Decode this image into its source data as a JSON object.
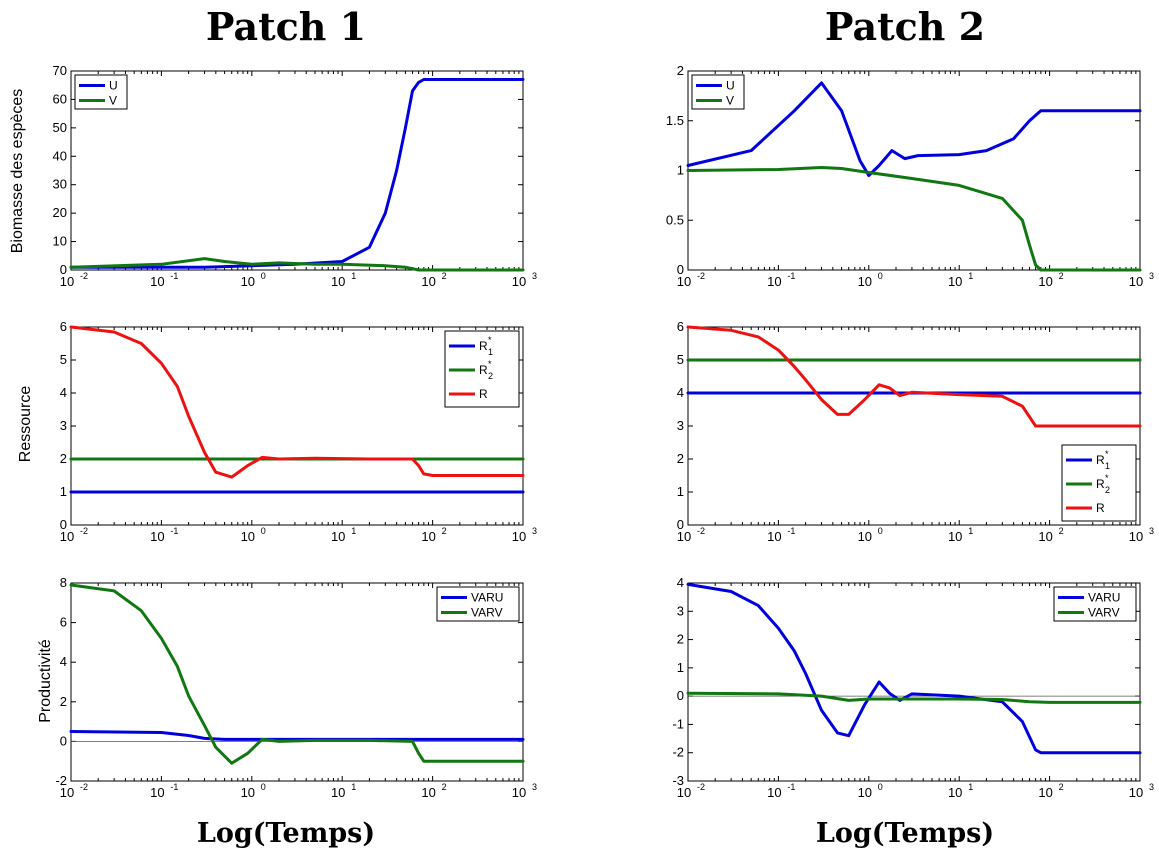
{
  "figure": {
    "titles": [
      "Patch 1",
      "Patch 2"
    ],
    "xlabel": "Log(Temps)",
    "row_ylabels": [
      "Biomasse des espèces",
      "Ressource",
      "Productivité"
    ]
  },
  "colors": {
    "blue": "#0000dd",
    "green": "#117711",
    "red": "#ee1111",
    "zero": "#555555"
  },
  "chart_data": [
    {
      "type": "line",
      "panel": "patch1-biomass",
      "title": "Patch 1",
      "xlabel": "",
      "ylabel": "Biomasse des espèces",
      "xscale": "log",
      "xlim": [
        0.01,
        1000
      ],
      "ylim": [
        0,
        70
      ],
      "xticks": [
        0.01,
        0.1,
        1,
        10,
        100,
        1000
      ],
      "yticks": [
        0,
        10,
        20,
        30,
        40,
        50,
        60,
        70
      ],
      "legend_pos": "top-left",
      "zero_line": false,
      "series": [
        {
          "name": "U",
          "color": "blue",
          "x": [
            0.01,
            0.1,
            0.3,
            1,
            3,
            10,
            20,
            30,
            40,
            50,
            60,
            70,
            80,
            100,
            1000
          ],
          "y": [
            1,
            1,
            1,
            1.5,
            2,
            3,
            8,
            20,
            35,
            50,
            63,
            66,
            67,
            67,
            67
          ]
        },
        {
          "name": "V",
          "color": "green",
          "x": [
            0.01,
            0.1,
            0.3,
            0.5,
            1,
            2,
            5,
            10,
            30,
            50,
            70,
            100,
            1000
          ],
          "y": [
            1,
            2,
            4,
            3,
            2,
            2.5,
            2,
            2,
            1.5,
            1,
            0,
            0,
            0
          ]
        }
      ]
    },
    {
      "type": "line",
      "panel": "patch2-biomass",
      "title": "Patch 2",
      "xlabel": "",
      "ylabel": "",
      "xscale": "log",
      "xlim": [
        0.01,
        1000
      ],
      "ylim": [
        0,
        2
      ],
      "xticks": [
        0.01,
        0.1,
        1,
        10,
        100,
        1000
      ],
      "yticks": [
        0,
        0.5,
        1,
        1.5,
        2
      ],
      "legend_pos": "top-left",
      "zero_line": false,
      "series": [
        {
          "name": "U",
          "color": "blue",
          "x": [
            0.01,
            0.05,
            0.15,
            0.3,
            0.5,
            0.8,
            1,
            1.3,
            1.8,
            2.5,
            3.5,
            10,
            20,
            40,
            60,
            80,
            100,
            1000
          ],
          "y": [
            1.05,
            1.2,
            1.6,
            1.88,
            1.6,
            1.1,
            0.95,
            1.05,
            1.2,
            1.12,
            1.15,
            1.16,
            1.2,
            1.32,
            1.5,
            1.6,
            1.6,
            1.6
          ]
        },
        {
          "name": "V",
          "color": "green",
          "x": [
            0.01,
            0.1,
            0.3,
            0.5,
            1,
            3,
            10,
            30,
            50,
            60,
            70,
            80,
            100,
            1000
          ],
          "y": [
            1,
            1.01,
            1.03,
            1.02,
            0.98,
            0.92,
            0.85,
            0.72,
            0.5,
            0.25,
            0.05,
            0,
            0,
            0
          ]
        }
      ]
    },
    {
      "type": "line",
      "panel": "patch1-resource",
      "xlabel": "",
      "ylabel": "Ressource",
      "xscale": "log",
      "xlim": [
        0.01,
        1000
      ],
      "ylim": [
        0,
        6
      ],
      "xticks": [
        0.01,
        0.1,
        1,
        10,
        100,
        1000
      ],
      "yticks": [
        0,
        1,
        2,
        3,
        4,
        5,
        6
      ],
      "legend_pos": "top-right",
      "zero_line": false,
      "series": [
        {
          "name": "R*1",
          "color": "blue",
          "x": [
            0.01,
            1000
          ],
          "y": [
            1,
            1
          ]
        },
        {
          "name": "R*2",
          "color": "green",
          "x": [
            0.01,
            1000
          ],
          "y": [
            2,
            2
          ]
        },
        {
          "name": "R",
          "color": "red",
          "x": [
            0.01,
            0.03,
            0.06,
            0.1,
            0.15,
            0.2,
            0.3,
            0.4,
            0.6,
            0.9,
            1.3,
            2,
            5,
            20,
            60,
            70,
            80,
            100,
            1000
          ],
          "y": [
            6,
            5.85,
            5.5,
            4.9,
            4.2,
            3.3,
            2.2,
            1.6,
            1.45,
            1.8,
            2.05,
            2,
            2.02,
            2,
            2,
            1.8,
            1.55,
            1.5,
            1.5
          ]
        }
      ]
    },
    {
      "type": "line",
      "panel": "patch2-resource",
      "xlabel": "",
      "ylabel": "",
      "xscale": "log",
      "xlim": [
        0.01,
        1000
      ],
      "ylim": [
        0,
        6
      ],
      "xticks": [
        0.01,
        0.1,
        1,
        10,
        100,
        1000
      ],
      "yticks": [
        0,
        1,
        2,
        3,
        4,
        5,
        6
      ],
      "legend_pos": "bottom-right",
      "zero_line": false,
      "series": [
        {
          "name": "R*1",
          "color": "blue",
          "x": [
            0.01,
            1000
          ],
          "y": [
            4,
            4
          ]
        },
        {
          "name": "R*2",
          "color": "green",
          "x": [
            0.01,
            1000
          ],
          "y": [
            5,
            5
          ]
        },
        {
          "name": "R",
          "color": "red",
          "x": [
            0.01,
            0.03,
            0.06,
            0.1,
            0.15,
            0.2,
            0.3,
            0.45,
            0.6,
            0.9,
            1.3,
            1.7,
            2.2,
            3,
            10,
            30,
            50,
            70,
            100,
            1000
          ],
          "y": [
            6,
            5.9,
            5.7,
            5.3,
            4.8,
            4.4,
            3.8,
            3.35,
            3.35,
            3.8,
            4.25,
            4.15,
            3.92,
            4.02,
            3.95,
            3.9,
            3.6,
            3,
            3,
            3
          ]
        }
      ]
    },
    {
      "type": "line",
      "panel": "patch1-productivity",
      "xlabel": "Log(Temps)",
      "ylabel": "Productivité",
      "xscale": "log",
      "xlim": [
        0.01,
        1000
      ],
      "ylim": [
        -2,
        8
      ],
      "xticks": [
        0.01,
        0.1,
        1,
        10,
        100,
        1000
      ],
      "yticks": [
        -2,
        0,
        2,
        4,
        6,
        8
      ],
      "legend_pos": "top-right",
      "zero_line": true,
      "series": [
        {
          "name": "VARU",
          "color": "blue",
          "x": [
            0.01,
            0.1,
            0.2,
            0.3,
            0.5,
            1,
            10,
            60,
            1000
          ],
          "y": [
            0.5,
            0.45,
            0.3,
            0.15,
            0.1,
            0.1,
            0.1,
            0.1,
            0.1
          ]
        },
        {
          "name": "VARV",
          "color": "green",
          "x": [
            0.01,
            0.03,
            0.06,
            0.1,
            0.15,
            0.2,
            0.3,
            0.4,
            0.6,
            0.9,
            1.3,
            2,
            5,
            20,
            60,
            70,
            80,
            100,
            1000
          ],
          "y": [
            7.9,
            7.6,
            6.6,
            5.2,
            3.8,
            2.3,
            0.8,
            -0.3,
            -1.1,
            -0.6,
            0.1,
            0,
            0.05,
            0.05,
            0,
            -0.6,
            -1,
            -1,
            -1
          ]
        }
      ]
    },
    {
      "type": "line",
      "panel": "patch2-productivity",
      "xlabel": "Log(Temps)",
      "ylabel": "",
      "xscale": "log",
      "xlim": [
        0.01,
        1000
      ],
      "ylim": [
        -3,
        4
      ],
      "xticks": [
        0.01,
        0.1,
        1,
        10,
        100,
        1000
      ],
      "yticks": [
        -3,
        -2,
        -1,
        0,
        1,
        2,
        3,
        4
      ],
      "legend_pos": "top-right",
      "zero_line": true,
      "series": [
        {
          "name": "VARU",
          "color": "blue",
          "x": [
            0.01,
            0.03,
            0.06,
            0.1,
            0.15,
            0.2,
            0.3,
            0.45,
            0.6,
            0.9,
            1.3,
            1.7,
            2.2,
            3,
            10,
            30,
            50,
            70,
            80,
            100,
            1000
          ],
          "y": [
            3.95,
            3.7,
            3.2,
            2.4,
            1.6,
            0.8,
            -0.5,
            -1.3,
            -1.4,
            -0.3,
            0.5,
            0.1,
            -0.15,
            0.08,
            0,
            -0.2,
            -0.9,
            -1.9,
            -2,
            -2,
            -2
          ]
        },
        {
          "name": "VARV",
          "color": "green",
          "x": [
            0.01,
            0.1,
            0.3,
            0.6,
            1,
            3,
            10,
            30,
            60,
            100,
            1000
          ],
          "y": [
            0.1,
            0.08,
            0,
            -0.15,
            -0.1,
            -0.1,
            -0.1,
            -0.12,
            -0.2,
            -0.22,
            -0.22
          ]
        }
      ]
    }
  ]
}
